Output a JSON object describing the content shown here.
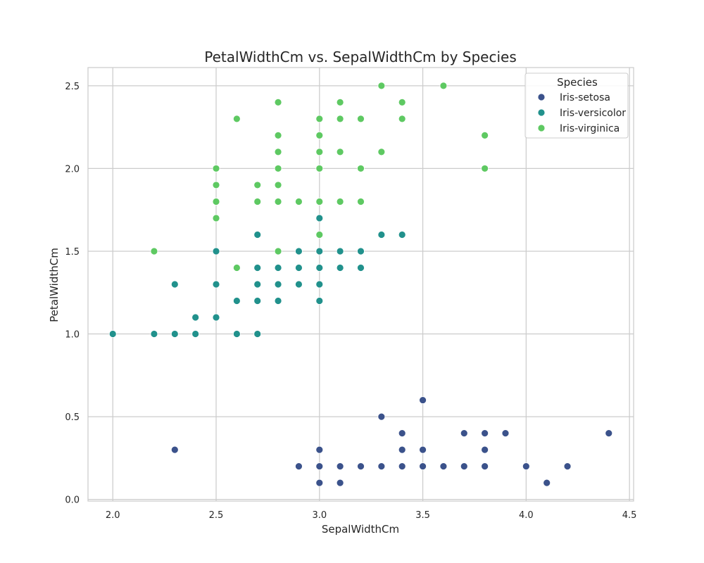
{
  "chart_data": {
    "type": "scatter",
    "title": "PetalWidthCm vs. SepalWidthCm by Species",
    "xlabel": "SepalWidthCm",
    "ylabel": "PetalWidthCm",
    "xlim": [
      1.88,
      4.52
    ],
    "ylim": [
      -0.01,
      2.61
    ],
    "xticks": [
      "2.0",
      "2.5",
      "3.0",
      "3.5",
      "4.0",
      "4.5"
    ],
    "yticks": [
      "0.0",
      "0.5",
      "1.0",
      "1.5",
      "2.0",
      "2.5"
    ],
    "grid": true,
    "legend": {
      "title": "Species",
      "placement": "top-right"
    },
    "series": [
      {
        "name": "Iris-setosa",
        "color": "#3b528b",
        "points": [
          [
            2.3,
            0.3
          ],
          [
            2.9,
            0.2
          ],
          [
            3.0,
            0.1
          ],
          [
            3.0,
            0.2
          ],
          [
            3.0,
            0.3
          ],
          [
            3.1,
            0.1
          ],
          [
            3.1,
            0.2
          ],
          [
            3.2,
            0.2
          ],
          [
            3.3,
            0.2
          ],
          [
            3.3,
            0.5
          ],
          [
            3.4,
            0.2
          ],
          [
            3.4,
            0.3
          ],
          [
            3.4,
            0.4
          ],
          [
            3.5,
            0.2
          ],
          [
            3.5,
            0.3
          ],
          [
            3.5,
            0.6
          ],
          [
            3.6,
            0.2
          ],
          [
            3.7,
            0.2
          ],
          [
            3.7,
            0.4
          ],
          [
            3.8,
            0.2
          ],
          [
            3.8,
            0.3
          ],
          [
            3.8,
            0.4
          ],
          [
            3.9,
            0.4
          ],
          [
            4.0,
            0.2
          ],
          [
            4.1,
            0.1
          ],
          [
            4.2,
            0.2
          ],
          [
            4.4,
            0.4
          ]
        ]
      },
      {
        "name": "Iris-versicolor",
        "color": "#21918c",
        "points": [
          [
            2.0,
            1.0
          ],
          [
            2.2,
            1.0
          ],
          [
            2.3,
            1.0
          ],
          [
            2.3,
            1.3
          ],
          [
            2.4,
            1.0
          ],
          [
            2.4,
            1.1
          ],
          [
            2.5,
            1.1
          ],
          [
            2.5,
            1.3
          ],
          [
            2.5,
            1.5
          ],
          [
            2.6,
            1.0
          ],
          [
            2.6,
            1.2
          ],
          [
            2.7,
            1.0
          ],
          [
            2.7,
            1.2
          ],
          [
            2.7,
            1.3
          ],
          [
            2.7,
            1.4
          ],
          [
            2.7,
            1.6
          ],
          [
            2.8,
            1.2
          ],
          [
            2.8,
            1.3
          ],
          [
            2.8,
            1.4
          ],
          [
            2.9,
            1.3
          ],
          [
            2.9,
            1.4
          ],
          [
            2.9,
            1.5
          ],
          [
            3.0,
            1.2
          ],
          [
            3.0,
            1.3
          ],
          [
            3.0,
            1.4
          ],
          [
            3.0,
            1.5
          ],
          [
            3.0,
            1.7
          ],
          [
            3.1,
            1.4
          ],
          [
            3.1,
            1.5
          ],
          [
            3.2,
            1.4
          ],
          [
            3.2,
            1.5
          ],
          [
            3.3,
            1.6
          ],
          [
            3.4,
            1.6
          ]
        ]
      },
      {
        "name": "Iris-virginica",
        "color": "#5ec962",
        "points": [
          [
            2.2,
            1.5
          ],
          [
            2.5,
            1.7
          ],
          [
            2.5,
            1.8
          ],
          [
            2.5,
            1.9
          ],
          [
            2.5,
            2.0
          ],
          [
            2.6,
            1.4
          ],
          [
            2.6,
            2.3
          ],
          [
            2.7,
            1.8
          ],
          [
            2.7,
            1.9
          ],
          [
            2.8,
            1.5
          ],
          [
            2.8,
            1.8
          ],
          [
            2.8,
            1.9
          ],
          [
            2.8,
            2.0
          ],
          [
            2.8,
            2.1
          ],
          [
            2.8,
            2.2
          ],
          [
            2.8,
            2.4
          ],
          [
            2.9,
            1.8
          ],
          [
            3.0,
            1.6
          ],
          [
            3.0,
            1.8
          ],
          [
            3.0,
            2.0
          ],
          [
            3.0,
            2.1
          ],
          [
            3.0,
            2.2
          ],
          [
            3.0,
            2.3
          ],
          [
            3.1,
            1.8
          ],
          [
            3.1,
            2.1
          ],
          [
            3.1,
            2.3
          ],
          [
            3.1,
            2.4
          ],
          [
            3.2,
            1.8
          ],
          [
            3.2,
            2.0
          ],
          [
            3.2,
            2.3
          ],
          [
            3.3,
            2.1
          ],
          [
            3.3,
            2.5
          ],
          [
            3.4,
            2.3
          ],
          [
            3.4,
            2.4
          ],
          [
            3.6,
            2.5
          ],
          [
            3.8,
            2.0
          ],
          [
            3.8,
            2.2
          ]
        ]
      }
    ]
  }
}
